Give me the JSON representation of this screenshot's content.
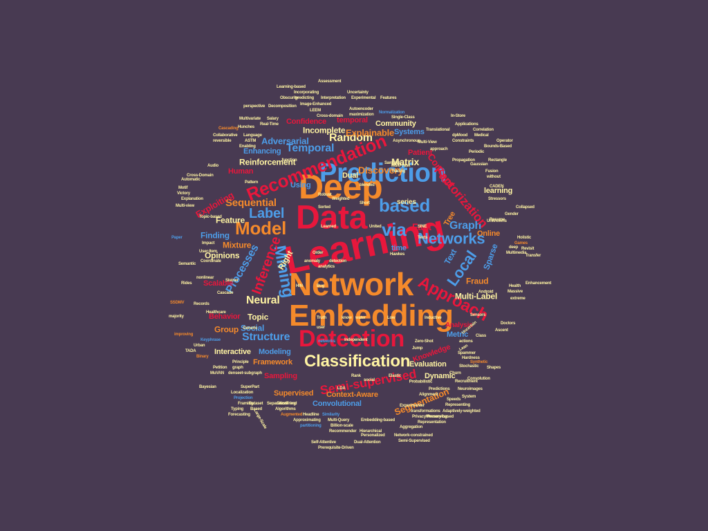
{
  "palette": {
    "background": "#483a52",
    "red": "#e8173c",
    "orange": "#f58a2b",
    "blue": "#4d9de8",
    "yellow": "#fff4a3"
  },
  "words": [
    {
      "text": "Learning",
      "color": "red"
    },
    {
      "text": "Network",
      "color": "orange"
    },
    {
      "text": "Data",
      "color": "red"
    },
    {
      "text": "Deep",
      "color": "orange"
    },
    {
      "text": "Embedding",
      "color": "orange"
    },
    {
      "text": "Prediction",
      "color": "blue"
    },
    {
      "text": "Detection",
      "color": "red"
    },
    {
      "text": "Recommendation",
      "color": "red"
    },
    {
      "text": "Classification",
      "color": "yellow"
    },
    {
      "text": "based",
      "color": "blue"
    },
    {
      "text": "Model",
      "color": "orange"
    },
    {
      "text": "via",
      "color": "blue"
    },
    {
      "text": "Networks",
      "color": "blue"
    },
    {
      "text": "Approach",
      "color": "red"
    },
    {
      "text": "Mining",
      "color": "blue"
    },
    {
      "text": "Inference",
      "color": "red"
    },
    {
      "text": "Label",
      "color": "blue"
    },
    {
      "text": "Local",
      "color": "blue"
    },
    {
      "text": "Graph",
      "color": "blue"
    },
    {
      "text": "Semi-supervised",
      "color": "red"
    },
    {
      "text": "Factorization",
      "color": "red"
    },
    {
      "text": "Random",
      "color": "yellow"
    },
    {
      "text": "Temporal",
      "color": "blue"
    },
    {
      "text": "Matrix",
      "color": "yellow"
    },
    {
      "text": "Sequential",
      "color": "orange"
    },
    {
      "text": "Neural",
      "color": "yellow"
    },
    {
      "text": "Structure",
      "color": "blue"
    },
    {
      "text": "Fast",
      "color": "red"
    },
    {
      "text": "Discovery",
      "color": "orange"
    },
    {
      "text": "Concept",
      "color": "red"
    },
    {
      "text": "Processes",
      "color": "blue"
    },
    {
      "text": "Segmentation",
      "color": "orange"
    },
    {
      "text": "Multi-Label",
      "color": "yellow"
    },
    {
      "text": "Explainable",
      "color": "orange"
    },
    {
      "text": "Adversarial",
      "color": "blue"
    },
    {
      "text": "Reinforcement",
      "color": "yellow"
    },
    {
      "text": "Incomplete",
      "color": "yellow"
    },
    {
      "text": "Systems",
      "color": "blue"
    },
    {
      "text": "Community",
      "color": "yellow"
    },
    {
      "text": "Enhancing",
      "color": "blue"
    },
    {
      "text": "Framework",
      "color": "orange"
    },
    {
      "text": "Dynamic",
      "color": "yellow"
    },
    {
      "text": "Evaluation",
      "color": "yellow"
    },
    {
      "text": "Supervised",
      "color": "orange"
    },
    {
      "text": "Context-Aware",
      "color": "orange"
    },
    {
      "text": "Convolutional",
      "color": "blue"
    },
    {
      "text": "Sampling",
      "color": "red"
    },
    {
      "text": "Interactive",
      "color": "yellow"
    },
    {
      "text": "Modeling",
      "color": "blue"
    },
    {
      "text": "Knowledge",
      "color": "red"
    },
    {
      "text": "Metric",
      "color": "blue"
    },
    {
      "text": "Analysis",
      "color": "red"
    },
    {
      "text": "Fraud",
      "color": "orange"
    },
    {
      "text": "Sparse",
      "color": "blue"
    },
    {
      "text": "Text",
      "color": "blue"
    },
    {
      "text": "Online",
      "color": "orange"
    },
    {
      "text": "Topic",
      "color": "yellow"
    },
    {
      "text": "Social",
      "color": "blue"
    },
    {
      "text": "Group",
      "color": "orange"
    },
    {
      "text": "Behavior",
      "color": "red"
    },
    {
      "text": "Right",
      "color": "yellow"
    },
    {
      "text": "Opinions",
      "color": "yellow"
    },
    {
      "text": "Mixture",
      "color": "orange"
    },
    {
      "text": "Finding",
      "color": "blue"
    },
    {
      "text": "Feature",
      "color": "yellow"
    },
    {
      "text": "Exploiting",
      "color": "red"
    },
    {
      "text": "Human",
      "color": "red"
    },
    {
      "text": "Using",
      "color": "blue"
    },
    {
      "text": "Dual",
      "color": "yellow"
    },
    {
      "text": "learning",
      "color": "yellow"
    },
    {
      "text": "Patient",
      "color": "red"
    },
    {
      "text": "Confidence",
      "color": "red"
    },
    {
      "text": "temporal",
      "color": "red"
    },
    {
      "text": "Scalable",
      "color": "red"
    },
    {
      "text": "Tree",
      "color": "orange"
    },
    {
      "text": "time",
      "color": "blue"
    },
    {
      "text": "series",
      "color": "yellow"
    },
    {
      "text": "Assessment",
      "color": "yellow"
    },
    {
      "text": "Learning-based",
      "color": "yellow"
    },
    {
      "text": "Incorporating",
      "color": "yellow"
    },
    {
      "text": "Uncertainty",
      "color": "yellow"
    },
    {
      "text": "Obscurity",
      "color": "yellow"
    },
    {
      "text": "predicting",
      "color": "yellow"
    },
    {
      "text": "Interpretation",
      "color": "yellow"
    },
    {
      "text": "Experimental",
      "color": "yellow"
    },
    {
      "text": "Features",
      "color": "yellow"
    },
    {
      "text": "perspective",
      "color": "yellow"
    },
    {
      "text": "Decomposition",
      "color": "yellow"
    },
    {
      "text": "Image-Enhanced",
      "color": "yellow"
    },
    {
      "text": "LEEM",
      "color": "yellow"
    },
    {
      "text": "Autoencoder",
      "color": "yellow"
    },
    {
      "text": "maximization",
      "color": "yellow"
    },
    {
      "text": "Normalization",
      "color": "blue"
    },
    {
      "text": "Single-Class",
      "color": "yellow"
    },
    {
      "text": "Multivariate",
      "color": "yellow"
    },
    {
      "text": "Salary",
      "color": "yellow"
    },
    {
      "text": "Cross-domain",
      "color": "yellow"
    },
    {
      "text": "Hunches",
      "color": "yellow"
    },
    {
      "text": "Real-Time",
      "color": "yellow"
    },
    {
      "text": "Cascading",
      "color": "orange"
    },
    {
      "text": "Collaborative",
      "color": "yellow"
    },
    {
      "text": "Language",
      "color": "yellow"
    },
    {
      "text": "reversible",
      "color": "yellow"
    },
    {
      "text": "ASTM",
      "color": "yellow"
    },
    {
      "text": "Enabling",
      "color": "yellow"
    },
    {
      "text": "Audio",
      "color": "yellow"
    },
    {
      "text": "Automatic",
      "color": "yellow"
    },
    {
      "text": "Cross-Domain",
      "color": "yellow"
    },
    {
      "text": "Pattern",
      "color": "yellow"
    },
    {
      "text": "Motif",
      "color": "yellow"
    },
    {
      "text": "Victory",
      "color": "yellow"
    },
    {
      "text": "Multi-view",
      "color": "yellow"
    },
    {
      "text": "Explanation",
      "color": "yellow"
    },
    {
      "text": "Topic-based",
      "color": "yellow"
    },
    {
      "text": "Paper",
      "color": "blue"
    },
    {
      "text": "Impact",
      "color": "yellow"
    },
    {
      "text": "User-Item",
      "color": "yellow"
    },
    {
      "text": "Semantic",
      "color": "yellow"
    },
    {
      "text": "Coordinate",
      "color": "yellow"
    },
    {
      "text": "nonlinear",
      "color": "yellow"
    },
    {
      "text": "Rides",
      "color": "yellow"
    },
    {
      "text": "Steiner",
      "color": "yellow"
    },
    {
      "text": "Cascade",
      "color": "yellow"
    },
    {
      "text": "SSDMV",
      "color": "orange"
    },
    {
      "text": "Records",
      "color": "yellow"
    },
    {
      "text": "majority",
      "color": "yellow"
    },
    {
      "text": "Healthcare",
      "color": "yellow"
    },
    {
      "text": "improving",
      "color": "orange"
    },
    {
      "text": "Keyphrase",
      "color": "blue"
    },
    {
      "text": "Urban",
      "color": "yellow"
    },
    {
      "text": "TADA",
      "color": "yellow"
    },
    {
      "text": "Binary",
      "color": "orange"
    },
    {
      "text": "Principle",
      "color": "yellow"
    },
    {
      "text": "Petition",
      "color": "yellow"
    },
    {
      "text": "graph",
      "color": "yellow"
    },
    {
      "text": "MuVAN",
      "color": "yellow"
    },
    {
      "text": "denseet-subgraph",
      "color": "yellow"
    },
    {
      "text": "Bayesian",
      "color": "yellow"
    },
    {
      "text": "SuperPart",
      "color": "yellow"
    },
    {
      "text": "Localization",
      "color": "yellow"
    },
    {
      "text": "Projection",
      "color": "blue"
    },
    {
      "text": "Framing",
      "color": "yellow"
    },
    {
      "text": "Dataset",
      "color": "yellow"
    },
    {
      "text": "Based",
      "color": "yellow"
    },
    {
      "text": "Algorithms",
      "color": "yellow"
    },
    {
      "text": "Separation",
      "color": "yellow"
    },
    {
      "text": "Clustering",
      "color": "yellow"
    },
    {
      "text": "Trend",
      "color": "yellow"
    },
    {
      "text": "Typing",
      "color": "yellow"
    },
    {
      "text": "Forecasting",
      "color": "yellow"
    },
    {
      "text": "Augmented",
      "color": "orange"
    },
    {
      "text": "Headline",
      "color": "yellow"
    },
    {
      "text": "Similarity",
      "color": "blue"
    },
    {
      "text": "Approximating",
      "color": "yellow"
    },
    {
      "text": "Multi-Query",
      "color": "yellow"
    },
    {
      "text": "Embedding-based",
      "color": "yellow"
    },
    {
      "text": "partitioning",
      "color": "blue"
    },
    {
      "text": "Billion-scale",
      "color": "yellow"
    },
    {
      "text": "Recommender",
      "color": "yellow"
    },
    {
      "text": "Hierarchical",
      "color": "yellow"
    },
    {
      "text": "Self-Attentive",
      "color": "yellow"
    },
    {
      "text": "Personalized",
      "color": "yellow"
    },
    {
      "text": "Prerequisite-Driven",
      "color": "yellow"
    },
    {
      "text": "Dual-Attention",
      "color": "yellow"
    },
    {
      "text": "Semi-Supervised",
      "color": "yellow"
    },
    {
      "text": "Network-constrained",
      "color": "yellow"
    },
    {
      "text": "Large-Scale",
      "color": "yellow"
    },
    {
      "text": "transformations",
      "color": "yellow"
    },
    {
      "text": "Privacy-Preserving",
      "color": "yellow"
    },
    {
      "text": "Memory-based",
      "color": "yellow"
    },
    {
      "text": "Representation",
      "color": "yellow"
    },
    {
      "text": "Experimenter",
      "color": "yellow"
    },
    {
      "text": "Aggregation",
      "color": "yellow"
    },
    {
      "text": "Adaptively-weighted",
      "color": "yellow"
    },
    {
      "text": "Representing",
      "color": "yellow"
    },
    {
      "text": "Speeds",
      "color": "yellow"
    },
    {
      "text": "Alignment",
      "color": "yellow"
    },
    {
      "text": "Predictions",
      "color": "yellow"
    },
    {
      "text": "Neuroimages",
      "color": "yellow"
    },
    {
      "text": "Recruitment",
      "color": "yellow"
    },
    {
      "text": "System",
      "color": "yellow"
    },
    {
      "text": "Convolution",
      "color": "yellow"
    },
    {
      "text": "Churn",
      "color": "yellow"
    },
    {
      "text": "Shapes",
      "color": "yellow"
    },
    {
      "text": "Synthetic",
      "color": "orange"
    },
    {
      "text": "Hardness",
      "color": "yellow"
    },
    {
      "text": "Spammer",
      "color": "yellow"
    },
    {
      "text": "actions",
      "color": "yellow"
    },
    {
      "text": "Class",
      "color": "yellow"
    },
    {
      "text": "Ascent",
      "color": "yellow"
    },
    {
      "text": "Doctors",
      "color": "yellow"
    },
    {
      "text": "Sensors",
      "color": "yellow"
    },
    {
      "text": "Inductive",
      "color": "yellow"
    },
    {
      "text": "Massive",
      "color": "yellow"
    },
    {
      "text": "extreme",
      "color": "yellow"
    },
    {
      "text": "Health",
      "color": "yellow"
    },
    {
      "text": "Enhancement",
      "color": "yellow"
    },
    {
      "text": "Multimedia",
      "color": "yellow"
    },
    {
      "text": "deep",
      "color": "yellow"
    },
    {
      "text": "Transfer",
      "color": "yellow"
    },
    {
      "text": "Games",
      "color": "orange"
    },
    {
      "text": "Revisit",
      "color": "yellow"
    },
    {
      "text": "Holistic",
      "color": "yellow"
    },
    {
      "text": "Unknowns",
      "color": "yellow"
    },
    {
      "text": "Gender",
      "color": "yellow"
    },
    {
      "text": "Collapsed",
      "color": "yellow"
    },
    {
      "text": "Resume",
      "color": "yellow"
    },
    {
      "text": "Stressors",
      "color": "yellow"
    },
    {
      "text": "CADEN",
      "color": "yellow"
    },
    {
      "text": "without",
      "color": "yellow"
    },
    {
      "text": "Fusion",
      "color": "yellow"
    },
    {
      "text": "Gaussian",
      "color": "yellow"
    },
    {
      "text": "Propagation",
      "color": "yellow"
    },
    {
      "text": "Rectangle",
      "color": "yellow"
    },
    {
      "text": "Periodic",
      "color": "yellow"
    },
    {
      "text": "Bounds-Based",
      "color": "yellow"
    },
    {
      "text": "Constraints",
      "color": "yellow"
    },
    {
      "text": "Operator",
      "color": "yellow"
    },
    {
      "text": "dpMood",
      "color": "yellow"
    },
    {
      "text": "Medical",
      "color": "yellow"
    },
    {
      "text": "Correlation",
      "color": "yellow"
    },
    {
      "text": "Applications",
      "color": "yellow"
    },
    {
      "text": "In-Store",
      "color": "yellow"
    },
    {
      "text": "Translational",
      "color": "yellow"
    },
    {
      "text": "approach",
      "color": "yellow"
    },
    {
      "text": "Multi-View",
      "color": "yellow"
    },
    {
      "text": "Multi-Task",
      "color": "yellow"
    },
    {
      "text": "Tracing",
      "color": "yellow"
    },
    {
      "text": "Samples",
      "color": "yellow"
    },
    {
      "text": "blended",
      "color": "yellow"
    },
    {
      "text": "Robust",
      "color": "yellow"
    },
    {
      "text": "Weighted",
      "color": "yellow"
    },
    {
      "text": "Sorted",
      "color": "yellow"
    },
    {
      "text": "Short",
      "color": "yellow"
    },
    {
      "text": "Learned",
      "color": "yellow"
    },
    {
      "text": "United",
      "color": "yellow"
    },
    {
      "text": "SINE",
      "color": "yellow"
    },
    {
      "text": "Texts",
      "color": "yellow"
    },
    {
      "text": "Hawkes",
      "color": "yellow"
    },
    {
      "text": "detection",
      "color": "yellow"
    },
    {
      "text": "analytics",
      "color": "yellow"
    },
    {
      "text": "Order",
      "color": "yellow"
    },
    {
      "text": "anomaly",
      "color": "yellow"
    },
    {
      "text": "HIN",
      "color": "yellow"
    },
    {
      "text": "Bug",
      "color": "yellow"
    },
    {
      "text": "Truth",
      "color": "yellow"
    },
    {
      "text": "know",
      "color": "yellow"
    },
    {
      "text": "water",
      "color": "yellow"
    },
    {
      "text": "Low",
      "color": "yellow"
    },
    {
      "text": "user",
      "color": "yellow"
    },
    {
      "text": "networks",
      "color": "blue"
    },
    {
      "text": "Independent",
      "color": "yellow"
    },
    {
      "text": "Jump",
      "color": "yellow"
    },
    {
      "text": "Zero-Shot",
      "color": "yellow"
    },
    {
      "text": "Rank",
      "color": "yellow"
    },
    {
      "text": "Elastic",
      "color": "yellow"
    },
    {
      "text": "social",
      "color": "yellow"
    },
    {
      "text": "Stochastic",
      "color": "yellow"
    },
    {
      "text": "Uncertain",
      "color": "yellow"
    },
    {
      "text": "Lean",
      "color": "yellow"
    },
    {
      "text": "LDA",
      "color": "yellow"
    },
    {
      "text": "function",
      "color": "yellow"
    },
    {
      "text": "Android",
      "color": "yellow"
    },
    {
      "text": "Generic",
      "color": "yellow"
    },
    {
      "text": "Asynchronous",
      "color": "yellow"
    },
    {
      "text": "Probabilistic",
      "color": "yellow"
    }
  ]
}
